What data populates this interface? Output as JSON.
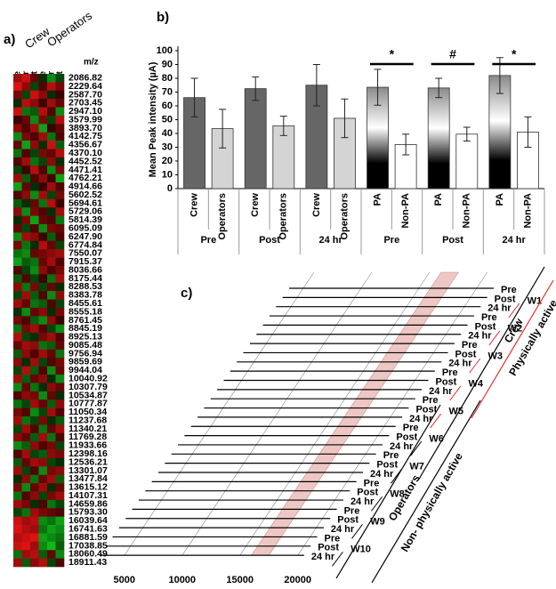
{
  "chart_data": [
    {
      "type": "heatmap",
      "label": "a)",
      "column_groups": [
        "Crew",
        "Operators"
      ],
      "columns": [
        "Pre",
        "24hr",
        "Post",
        "Pre",
        "24hr",
        "Post"
      ],
      "column_colors": [
        "#e03030",
        "#e03030",
        "#e03030",
        "#3050a0",
        "#3050a0",
        "#3050a0"
      ],
      "row_header": "m/z",
      "rows": [
        "2086.82",
        "2229.64",
        "2587.70",
        "2703.45",
        "2947.10",
        "3579.99",
        "3893.70",
        "4142.75",
        "4356.67",
        "4370.10",
        "4452.52",
        "4471.41",
        "4762.21",
        "4914.66",
        "5602.52",
        "5694.61",
        "5729.06",
        "5814.39",
        "6095.09",
        "6247.90",
        "6774.84",
        "7550.07",
        "7915.37",
        "8036.66",
        "8175.44",
        "8288.53",
        "8383.78",
        "8455.61",
        "8555.18",
        "8761.45",
        "8845.19",
        "8925.13",
        "9085.48",
        "9756.94",
        "9859.69",
        "9944.04",
        "10040.92",
        "10307.79",
        "10534.87",
        "10777.87",
        "11050.34",
        "11237.68",
        "11340.21",
        "11769.28",
        "11933.66",
        "12398.16",
        "12536.21",
        "13301.07",
        "13477.84",
        "13615.12",
        "14107.31",
        "14659.86",
        "15793.30",
        "16039.64",
        "16741.63",
        "16881.59",
        "17038.85",
        "18060.49",
        "18911.43"
      ],
      "values": [
        [
          0.6,
          0.8,
          0.3,
          -0.2,
          -0.6,
          -0.3
        ],
        [
          0.9,
          0.5,
          -0.3,
          0.2,
          0.7,
          0.4
        ],
        [
          0.4,
          -0.3,
          0.8,
          0.5,
          -0.2,
          0.1
        ],
        [
          -0.2,
          0.7,
          0.5,
          0.1,
          0.6,
          0.3
        ],
        [
          0.8,
          -0.5,
          -0.4,
          0.7,
          0.2,
          -0.6
        ],
        [
          0.1,
          0.3,
          -0.6,
          0.4,
          -0.3,
          0.7
        ],
        [
          0.5,
          0.2,
          0.6,
          -0.7,
          0.1,
          0.3
        ],
        [
          -0.6,
          0.4,
          0.2,
          0.6,
          -0.5,
          0.2
        ],
        [
          0.3,
          -0.7,
          0.5,
          -0.2,
          0.8,
          -0.4
        ],
        [
          -0.5,
          0.2,
          -0.3,
          0.4,
          0.3,
          0.7
        ],
        [
          0.2,
          0.6,
          -0.5,
          -0.3,
          0.5,
          -0.2
        ],
        [
          -0.3,
          0.1,
          0.7,
          0.2,
          -0.6,
          0.4
        ],
        [
          0.6,
          -0.4,
          0.2,
          0.5,
          0.1,
          -0.7
        ],
        [
          -0.7,
          0.3,
          -0.2,
          0.1,
          0.6,
          0.2
        ],
        [
          0.2,
          0.5,
          -0.6,
          0.6,
          -0.3,
          0.4
        ],
        [
          -0.4,
          -0.2,
          0.3,
          -0.5,
          0.7,
          0.1
        ],
        [
          0.5,
          -0.6,
          0.4,
          0.2,
          -0.2,
          0.6
        ],
        [
          -0.2,
          0.4,
          -0.7,
          0.3,
          0.2,
          -0.5
        ],
        [
          0.3,
          -0.3,
          0.2,
          -0.6,
          0.4,
          0.3
        ],
        [
          -0.6,
          0.6,
          0.5,
          0.1,
          -0.4,
          0.2
        ],
        [
          0.4,
          -0.5,
          -0.2,
          0.7,
          0.3,
          -0.3
        ],
        [
          -0.5,
          -0.6,
          0.3,
          0.4,
          0.5,
          0.6
        ],
        [
          -0.7,
          -0.4,
          -0.5,
          0.3,
          0.6,
          0.2
        ],
        [
          0.2,
          -0.3,
          -0.6,
          0.5,
          0.2,
          0.4
        ],
        [
          -0.4,
          0.2,
          -0.3,
          0.1,
          -0.5,
          0.6
        ],
        [
          0.5,
          -0.5,
          0.4,
          -0.3,
          0.3,
          -0.2
        ],
        [
          -0.3,
          0.6,
          -0.4,
          0.2,
          -0.6,
          0.5
        ],
        [
          0.6,
          0.3,
          -0.5,
          -0.4,
          0.2,
          -0.3
        ],
        [
          -0.2,
          -0.6,
          0.3,
          0.5,
          -0.2,
          0.4
        ],
        [
          0.4,
          0.2,
          -0.4,
          -0.6,
          0.5,
          0.1
        ],
        [
          -0.5,
          0.4,
          0.6,
          0.2,
          -0.3,
          -0.6
        ],
        [
          0.7,
          -0.3,
          -0.2,
          0.4,
          0.6,
          0.2
        ],
        [
          0.3,
          0.6,
          0.5,
          -0.5,
          -0.4,
          0.3
        ],
        [
          -0.4,
          0.5,
          0.2,
          0.6,
          0.3,
          -0.5
        ],
        [
          0.5,
          -0.2,
          0.6,
          -0.3,
          0.2,
          0.4
        ],
        [
          -0.3,
          0.7,
          -0.4,
          0.2,
          -0.6,
          0.3
        ],
        [
          0.6,
          -0.4,
          0.3,
          0.5,
          -0.2,
          -0.6
        ],
        [
          -0.6,
          0.3,
          -0.5,
          -0.2,
          0.5,
          0.3
        ],
        [
          0.2,
          0.5,
          0.4,
          -0.6,
          0.3,
          -0.2
        ],
        [
          -0.5,
          -0.3,
          0.6,
          0.3,
          -0.4,
          0.5
        ],
        [
          0.4,
          0.2,
          -0.6,
          -0.3,
          0.6,
          0.2
        ],
        [
          0.6,
          -0.5,
          -0.3,
          0.4,
          -0.2,
          -0.4
        ],
        [
          -0.3,
          0.6,
          0.2,
          -0.5,
          0.3,
          0.6
        ],
        [
          0.5,
          0.3,
          -0.4,
          0.6,
          -0.5,
          0.2
        ],
        [
          -0.6,
          -0.4,
          0.5,
          0.2,
          0.4,
          -0.3
        ],
        [
          0.2,
          0.6,
          -0.3,
          -0.4,
          0.5,
          0.4
        ],
        [
          -0.4,
          0.3,
          0.6,
          0.5,
          -0.3,
          -0.2
        ],
        [
          0.6,
          -0.3,
          0.2,
          -0.6,
          0.4,
          0.5
        ],
        [
          -0.2,
          0.5,
          -0.5,
          0.3,
          0.6,
          -0.4
        ],
        [
          0.4,
          -0.6,
          0.3,
          0.6,
          -0.2,
          0.3
        ],
        [
          -0.5,
          0.2,
          0.5,
          -0.3,
          0.4,
          0.6
        ],
        [
          0.6,
          0.4,
          -0.2,
          0.2,
          -0.5,
          -0.3
        ],
        [
          -0.3,
          -0.5,
          0.6,
          0.4,
          0.3,
          0.2
        ],
        [
          0.8,
          0.6,
          0.7,
          -0.6,
          -0.5,
          -0.7
        ],
        [
          0.9,
          0.7,
          0.6,
          -0.5,
          -0.7,
          -0.6
        ],
        [
          0.7,
          0.8,
          0.9,
          -0.7,
          -0.6,
          -0.5
        ],
        [
          0.8,
          0.9,
          0.6,
          -0.6,
          -0.8,
          -0.4
        ],
        [
          -0.5,
          0.6,
          0.7,
          -0.4,
          0.3,
          -0.6
        ],
        [
          0.6,
          -0.4,
          0.5,
          0.7,
          -0.3,
          0.2
        ]
      ]
    },
    {
      "type": "bar",
      "label": "b)",
      "ylabel": "Mean Peak intensity (µA)",
      "ylim": [
        0,
        100
      ],
      "yticks": [
        0,
        10,
        20,
        30,
        40,
        50,
        60,
        70,
        80,
        90,
        100
      ],
      "categories": [
        "Crew",
        "Operators",
        "Crew",
        "Operators",
        "Crew",
        "Operators",
        "PA",
        "Non-PA",
        "PA",
        "Non-PA",
        "PA",
        "Non-PA"
      ],
      "values": [
        66,
        43.5,
        72.5,
        45.5,
        75,
        51,
        73.5,
        32,
        73,
        39.5,
        82,
        41
      ],
      "errors": [
        14,
        14,
        8.5,
        7,
        15,
        14,
        13,
        7.5,
        7,
        5,
        13,
        11
      ],
      "colors": [
        "#666666",
        "#d4d4d4",
        "#666666",
        "#d4d4d4",
        "#666666",
        "#d4d4d4",
        "gradient",
        "#ffffff",
        "gradient",
        "#ffffff",
        "gradient",
        "#ffffff"
      ],
      "groups": [
        "Pre",
        "Post",
        "24 hr",
        "Pre",
        "Post",
        "24 hr"
      ],
      "annotations": [
        null,
        null,
        null,
        "*",
        "#",
        "*"
      ]
    },
    {
      "type": "spectra",
      "label": "c)",
      "xlim": [
        2850,
        20550
      ],
      "xticks": [
        5000,
        10000,
        15000,
        20000
      ],
      "highlight": [
        16000,
        17500
      ],
      "trace_labels": [
        "Pre",
        "Post",
        "24 hr",
        "Pre",
        "Post",
        "24 hr",
        "Pre",
        "Post",
        "24 hr",
        "Pre",
        "Post",
        "24 hr",
        "Pre",
        "Post",
        "24 hr",
        "Pre",
        "Post",
        "24 hr",
        "Pre",
        "Post",
        "24 hr",
        "Pre",
        "Post",
        "24 hr",
        "Pre",
        "Post",
        "24 hr",
        "Pre",
        "Post",
        "24 hr"
      ],
      "groups": [
        {
          "name": "W1",
          "color": "#e03030"
        },
        {
          "name": "W2",
          "color": "#e03030"
        },
        {
          "name": "W3",
          "color": "#e03030"
        },
        {
          "name": "W4",
          "color": "#e03030"
        },
        {
          "name": "W5",
          "color": "#e03030"
        },
        {
          "name": "W6",
          "color": "#000000"
        },
        {
          "name": "W7",
          "color": "#000000"
        },
        {
          "name": "W8",
          "color": "#000000"
        },
        {
          "name": "W9",
          "color": "#000000"
        },
        {
          "name": "W10",
          "color": "#000000"
        }
      ],
      "cohorts": [
        {
          "name": "Crew",
          "color": "#000000"
        },
        {
          "name": "Operators",
          "color": "#000000"
        }
      ],
      "activity": [
        {
          "name": "Physically active",
          "color": "#e03030"
        },
        {
          "name": "Non- physically active",
          "color": "#000000"
        }
      ]
    }
  ]
}
